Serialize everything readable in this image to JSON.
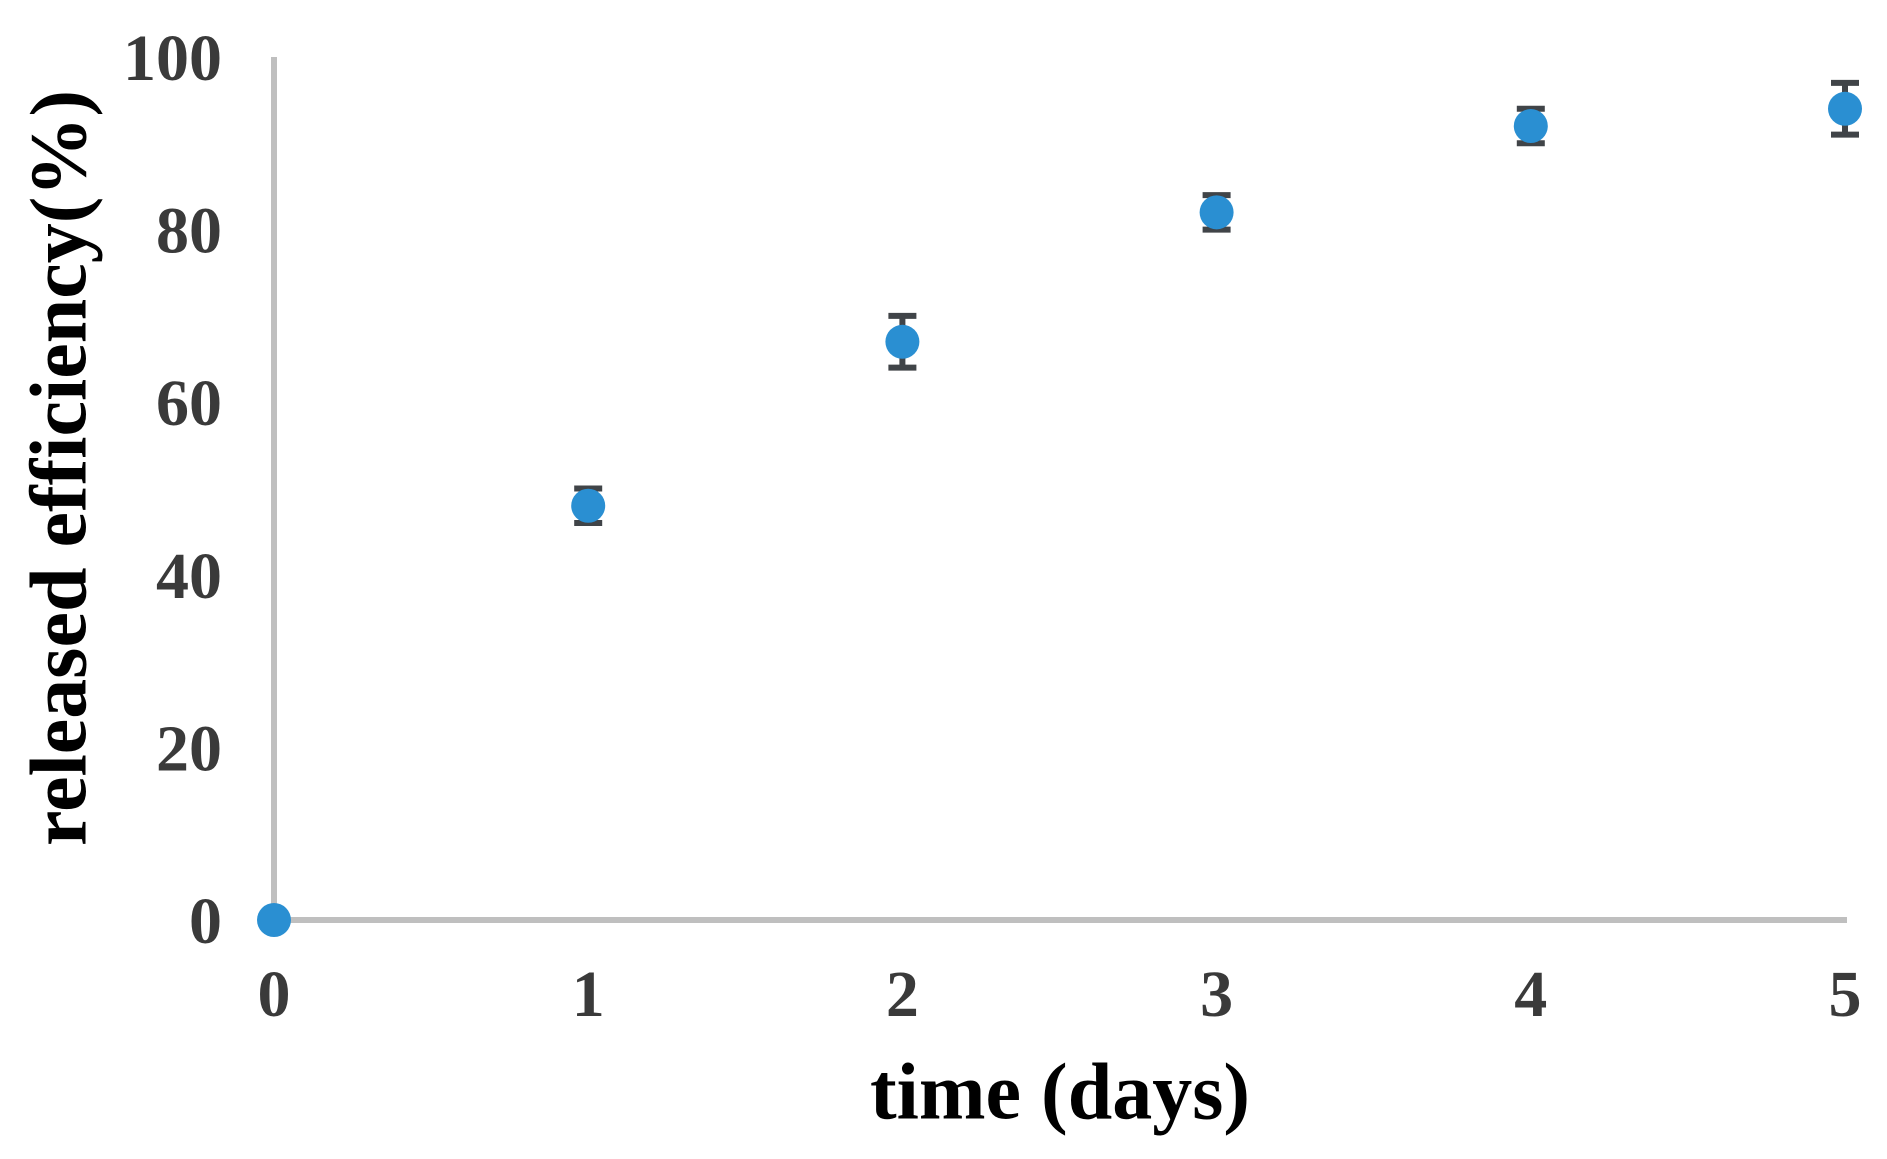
{
  "chart_data": {
    "type": "scatter",
    "title": "",
    "xlabel": "time (days)",
    "ylabel": "released efficiency(%)",
    "x": [
      0,
      1,
      2,
      3,
      4,
      5
    ],
    "y": [
      0,
      48,
      67,
      82,
      92,
      94
    ],
    "y_error": [
      0,
      2,
      3,
      2,
      2,
      3
    ],
    "x_ticks": [
      "0",
      "1",
      "2",
      "3",
      "4",
      "5"
    ],
    "y_ticks": [
      "0",
      "20",
      "40",
      "60",
      "80",
      "100"
    ],
    "xlim": [
      0,
      5
    ],
    "ylim": [
      0,
      100
    ],
    "grid": false,
    "legend": false,
    "marker_color": "#2a8fd2",
    "error_bar_color": "#404448",
    "axis_color": "#bfbfbf",
    "text_color": "#3a3a3a"
  }
}
